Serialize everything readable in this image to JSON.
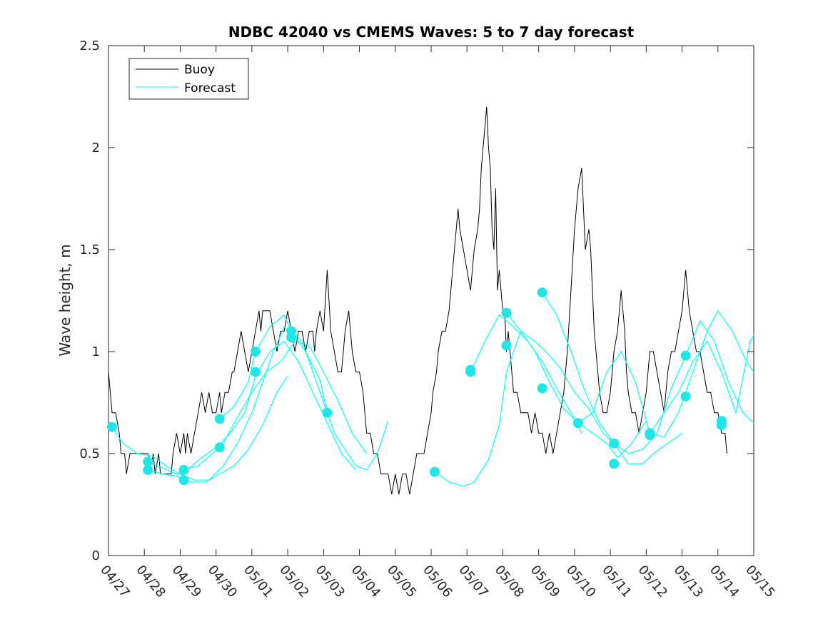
{
  "chart_data": {
    "type": "line",
    "title": "NDBC 42040 vs CMEMS Waves: 5 to 7 day forecast",
    "ylabel": "Wave height, m",
    "xlabel": "",
    "x_ticks": [
      "04/27",
      "04/28",
      "04/29",
      "04/30",
      "05/01",
      "05/02",
      "05/03",
      "05/04",
      "05/05",
      "05/06",
      "05/07",
      "05/08",
      "05/09",
      "05/10",
      "05/11",
      "05/12",
      "05/13",
      "05/14",
      "05/15"
    ],
    "y_ticks": [
      "0",
      "0.5",
      "1",
      "1.5",
      "2",
      "2.5"
    ],
    "xlim": [
      0,
      18
    ],
    "ylim": [
      0,
      2.5
    ],
    "grid": false,
    "legend": {
      "position": "top-left",
      "entries": [
        "Buoy",
        "Forecast"
      ]
    },
    "colors": {
      "buoy": "#000000",
      "forecast": "#00ffff",
      "forecast_marker": "#22e6e6"
    },
    "series": [
      {
        "name": "Buoy",
        "x": [
          0.0,
          0.05,
          0.1,
          0.2,
          0.3,
          0.35,
          0.45,
          0.5,
          0.6,
          0.65,
          0.75,
          0.8,
          0.9,
          1.0,
          1.1,
          1.2,
          1.25,
          1.3,
          1.4,
          1.45,
          1.5,
          1.6,
          1.7,
          1.75,
          1.8,
          1.9,
          2.0,
          2.1,
          2.15,
          2.2,
          2.3,
          2.4,
          2.5,
          2.6,
          2.7,
          2.8,
          2.9,
          3.0,
          3.1,
          3.15,
          3.25,
          3.35,
          3.45,
          3.5,
          3.6,
          3.7,
          3.8,
          3.9,
          4.0,
          4.1,
          4.2,
          4.25,
          4.3,
          4.4,
          4.5,
          4.6,
          4.7,
          4.8,
          4.9,
          5.0,
          5.1,
          5.2,
          5.3,
          5.4,
          5.5,
          5.6,
          5.7,
          5.75,
          5.8,
          5.9,
          6.0,
          6.1,
          6.2,
          6.3,
          6.4,
          6.5,
          6.55,
          6.6,
          6.7,
          6.75,
          6.8,
          6.9,
          7.0,
          7.1,
          7.15,
          7.2,
          7.3,
          7.4,
          7.5,
          7.6,
          7.7,
          7.8,
          7.9,
          8.0,
          8.1,
          8.2,
          8.3,
          8.4,
          8.5,
          8.6,
          8.7,
          8.8,
          8.9,
          9.0,
          9.05,
          9.15,
          9.2,
          9.3,
          9.4,
          9.5,
          9.55,
          9.6,
          9.65,
          9.7,
          9.75,
          9.8,
          9.9,
          10.0,
          10.1,
          10.2,
          10.3,
          10.35,
          10.4,
          10.5,
          10.55,
          10.6,
          10.65,
          10.7,
          10.75,
          10.8,
          10.85,
          10.9,
          11.0,
          11.05,
          11.1,
          11.15,
          11.2,
          11.25,
          11.3,
          11.4,
          11.5,
          11.6,
          11.7,
          11.8,
          11.9,
          12.0,
          12.1,
          12.2,
          12.3,
          12.4,
          12.5,
          12.6,
          12.7,
          12.8,
          12.9,
          13.0,
          13.1,
          13.2,
          13.3,
          13.4,
          13.45,
          13.5,
          13.55,
          13.6,
          13.65,
          13.7,
          13.8,
          13.9,
          14.0,
          14.1,
          14.2,
          14.3,
          14.35,
          14.4,
          14.45,
          14.5,
          14.6,
          14.7,
          14.8,
          14.9,
          15.0,
          15.1,
          15.2,
          15.3,
          15.4,
          15.5,
          15.6,
          15.7,
          15.8,
          15.9,
          16.0,
          16.1,
          16.2,
          16.3,
          16.4,
          16.5,
          16.6,
          16.7,
          16.8,
          16.9,
          17.0,
          17.1,
          17.2,
          17.25
        ],
        "y": [
          0.9,
          0.8,
          0.7,
          0.7,
          0.6,
          0.5,
          0.5,
          0.4,
          0.5,
          0.5,
          0.5,
          0.5,
          0.5,
          0.5,
          0.5,
          0.45,
          0.5,
          0.4,
          0.5,
          0.4,
          0.4,
          0.4,
          0.4,
          0.4,
          0.5,
          0.6,
          0.5,
          0.6,
          0.5,
          0.6,
          0.5,
          0.6,
          0.7,
          0.8,
          0.7,
          0.8,
          0.7,
          0.7,
          0.8,
          0.7,
          0.8,
          0.8,
          0.9,
          0.9,
          1.0,
          1.1,
          1.0,
          0.9,
          1.0,
          1.1,
          1.2,
          1.1,
          1.2,
          1.2,
          1.2,
          1.1,
          1.0,
          1.1,
          1.1,
          1.2,
          1.1,
          1.0,
          1.1,
          1.1,
          1.0,
          1.1,
          1.1,
          1.0,
          1.1,
          1.2,
          1.1,
          1.4,
          1.1,
          1.0,
          0.9,
          0.9,
          1.0,
          1.1,
          1.2,
          1.1,
          1.0,
          0.9,
          0.9,
          0.8,
          0.7,
          0.6,
          0.6,
          0.5,
          0.5,
          0.4,
          0.4,
          0.4,
          0.3,
          0.4,
          0.3,
          0.4,
          0.4,
          0.3,
          0.4,
          0.5,
          0.5,
          0.5,
          0.6,
          0.7,
          0.8,
          0.9,
          1.0,
          1.1,
          1.1,
          1.2,
          1.3,
          1.4,
          1.5,
          1.6,
          1.7,
          1.6,
          1.5,
          1.4,
          1.3,
          1.5,
          1.6,
          1.7,
          1.9,
          2.1,
          2.2,
          2.0,
          1.9,
          1.6,
          1.5,
          1.8,
          1.3,
          1.4,
          1.2,
          1.2,
          1.0,
          1.1,
          1.0,
          0.9,
          0.8,
          0.8,
          0.7,
          0.7,
          0.7,
          0.6,
          0.7,
          0.6,
          0.6,
          0.5,
          0.6,
          0.5,
          0.6,
          0.7,
          0.8,
          1.0,
          1.3,
          1.6,
          1.8,
          1.9,
          1.5,
          1.6,
          1.5,
          1.3,
          1.1,
          1.0,
          0.9,
          0.8,
          0.7,
          0.7,
          0.8,
          1.0,
          1.1,
          1.3,
          1.2,
          1.1,
          0.9,
          0.8,
          0.7,
          0.7,
          0.6,
          0.7,
          0.8,
          1.0,
          1.0,
          0.9,
          0.8,
          0.7,
          0.9,
          1.0,
          1.0,
          1.1,
          1.2,
          1.4,
          1.2,
          1.1,
          1.0,
          1.0,
          0.9,
          0.8,
          0.8,
          0.7,
          0.7,
          0.6,
          0.6,
          0.5
        ]
      },
      {
        "name": "Forecast",
        "segments": [
          {
            "x": [
              0.1,
              0.4,
              0.8,
              1.2,
              1.6,
              2.0,
              2.4,
              2.8,
              3.2,
              3.6,
              4.0,
              4.3,
              4.6,
              4.9,
              5.1,
              5.4,
              5.7,
              6.0,
              6.3,
              6.6,
              6.9,
              7.2,
              7.5,
              7.8
            ],
            "y": [
              0.63,
              0.55,
              0.5,
              0.49,
              0.44,
              0.4,
              0.37,
              0.37,
              0.44,
              0.55,
              0.7,
              0.85,
              1.0,
              1.12,
              1.1,
              1.05,
              0.9,
              0.75,
              0.6,
              0.52,
              0.44,
              0.42,
              0.5,
              0.66
            ]
          },
          {
            "x": [
              1.1,
              1.5,
              1.9,
              2.3,
              2.7,
              3.1,
              3.5,
              3.9,
              4.3,
              4.7,
              5.0
            ],
            "y": [
              0.42,
              0.4,
              0.39,
              0.36,
              0.36,
              0.4,
              0.44,
              0.52,
              0.64,
              0.8,
              0.88
            ]
          },
          {
            "x": [
              1.1,
              1.5,
              1.9,
              2.2,
              2.6,
              3.0,
              3.4,
              3.8,
              4.1,
              4.5,
              4.9,
              5.3,
              5.7,
              6.1,
              6.5,
              6.9
            ],
            "y": [
              0.46,
              0.43,
              0.4,
              0.42,
              0.48,
              0.53,
              0.6,
              0.7,
              0.88,
              1.0,
              1.05,
              0.95,
              0.8,
              0.65,
              0.5,
              0.42
            ]
          },
          {
            "x": [
              2.1,
              2.5,
              2.9,
              3.2,
              3.6,
              4.0,
              4.4,
              4.8,
              5.2,
              5.6,
              6.0,
              6.4,
              6.8,
              7.2
            ],
            "y": [
              0.42,
              0.44,
              0.5,
              0.55,
              0.68,
              0.8,
              0.9,
              0.95,
              1.05,
              1.03,
              0.9,
              0.76,
              0.6,
              0.5
            ]
          },
          {
            "x": [
              3.1,
              3.5,
              3.9,
              4.1,
              4.5,
              4.9,
              5.1,
              5.5,
              5.9,
              6.1
            ],
            "y": [
              0.67,
              0.73,
              0.85,
              1.0,
              1.12,
              1.18,
              1.1,
              1.0,
              0.86,
              0.7
            ]
          },
          {
            "x": [
              9.1,
              9.5,
              9.9,
              10.2,
              10.6,
              10.9,
              11.1,
              11.5,
              11.9,
              12.2,
              12.6,
              13.0,
              13.4,
              13.8,
              14.1
            ],
            "y": [
              0.41,
              0.36,
              0.34,
              0.36,
              0.47,
              0.64,
              0.9,
              1.1,
              1.05,
              1.0,
              0.92,
              0.8,
              0.72,
              0.6,
              0.55
            ]
          },
          {
            "x": [
              10.1,
              10.5,
              10.9,
              11.3,
              11.7,
              12.1,
              12.5,
              12.9,
              13.2
            ],
            "y": [
              0.9,
              1.05,
              1.18,
              1.12,
              1.05,
              0.95,
              0.82,
              0.7,
              0.6
            ]
          },
          {
            "x": [
              11.1,
              11.5,
              11.9,
              12.3,
              12.7,
              13.1,
              13.5,
              13.9,
              14.2,
              14.6,
              15.0
            ],
            "y": [
              1.19,
              1.1,
              1.0,
              0.85,
              0.72,
              0.65,
              0.6,
              0.55,
              0.48,
              0.55,
              0.66
            ]
          },
          {
            "x": [
              12.1,
              12.5,
              12.9,
              13.3,
              13.7,
              14.1,
              14.5,
              14.9,
              15.2,
              15.6,
              16.0
            ],
            "y": [
              1.29,
              1.18,
              1.0,
              0.8,
              0.65,
              0.55,
              0.45,
              0.45,
              0.5,
              0.55,
              0.6
            ]
          },
          {
            "x": [
              13.1,
              13.5,
              13.9,
              14.3,
              14.7,
              15.1,
              15.5,
              15.9,
              16.3,
              16.7,
              17.0,
              17.4,
              17.8,
              18.0
            ],
            "y": [
              0.65,
              0.7,
              0.9,
              1.0,
              0.85,
              0.6,
              0.58,
              0.7,
              0.9,
              1.1,
              1.2,
              1.1,
              0.95,
              0.9
            ]
          },
          {
            "x": [
              14.1,
              14.5,
              14.9,
              15.3,
              15.7,
              16.1,
              16.5,
              16.9,
              17.3,
              17.7,
              18.0
            ],
            "y": [
              0.55,
              0.5,
              0.52,
              0.6,
              0.82,
              0.98,
              1.15,
              1.05,
              0.85,
              0.7,
              0.65
            ]
          },
          {
            "x": [
              15.1,
              15.5,
              15.9,
              16.3,
              16.7,
              17.1,
              17.5,
              17.9,
              18.0
            ],
            "y": [
              0.6,
              0.7,
              0.8,
              0.95,
              1.05,
              0.9,
              0.7,
              1.05,
              1.08
            ]
          }
        ],
        "markers": {
          "x": [
            0.1,
            1.1,
            1.1,
            2.1,
            2.1,
            3.1,
            3.1,
            4.1,
            4.1,
            5.1,
            5.1,
            6.1,
            9.1,
            10.1,
            10.1,
            11.1,
            11.1,
            12.1,
            12.1,
            13.1,
            14.1,
            14.1,
            15.1,
            15.1,
            16.1,
            16.1,
            17.1,
            17.1
          ],
          "y": [
            0.63,
            0.42,
            0.46,
            0.42,
            0.37,
            0.67,
            0.53,
            1.0,
            0.9,
            1.1,
            1.07,
            0.7,
            0.41,
            0.9,
            0.91,
            1.19,
            1.03,
            1.29,
            0.82,
            0.65,
            0.55,
            0.45,
            0.6,
            0.59,
            0.98,
            0.78,
            0.66,
            0.64
          ]
        }
      }
    ]
  }
}
